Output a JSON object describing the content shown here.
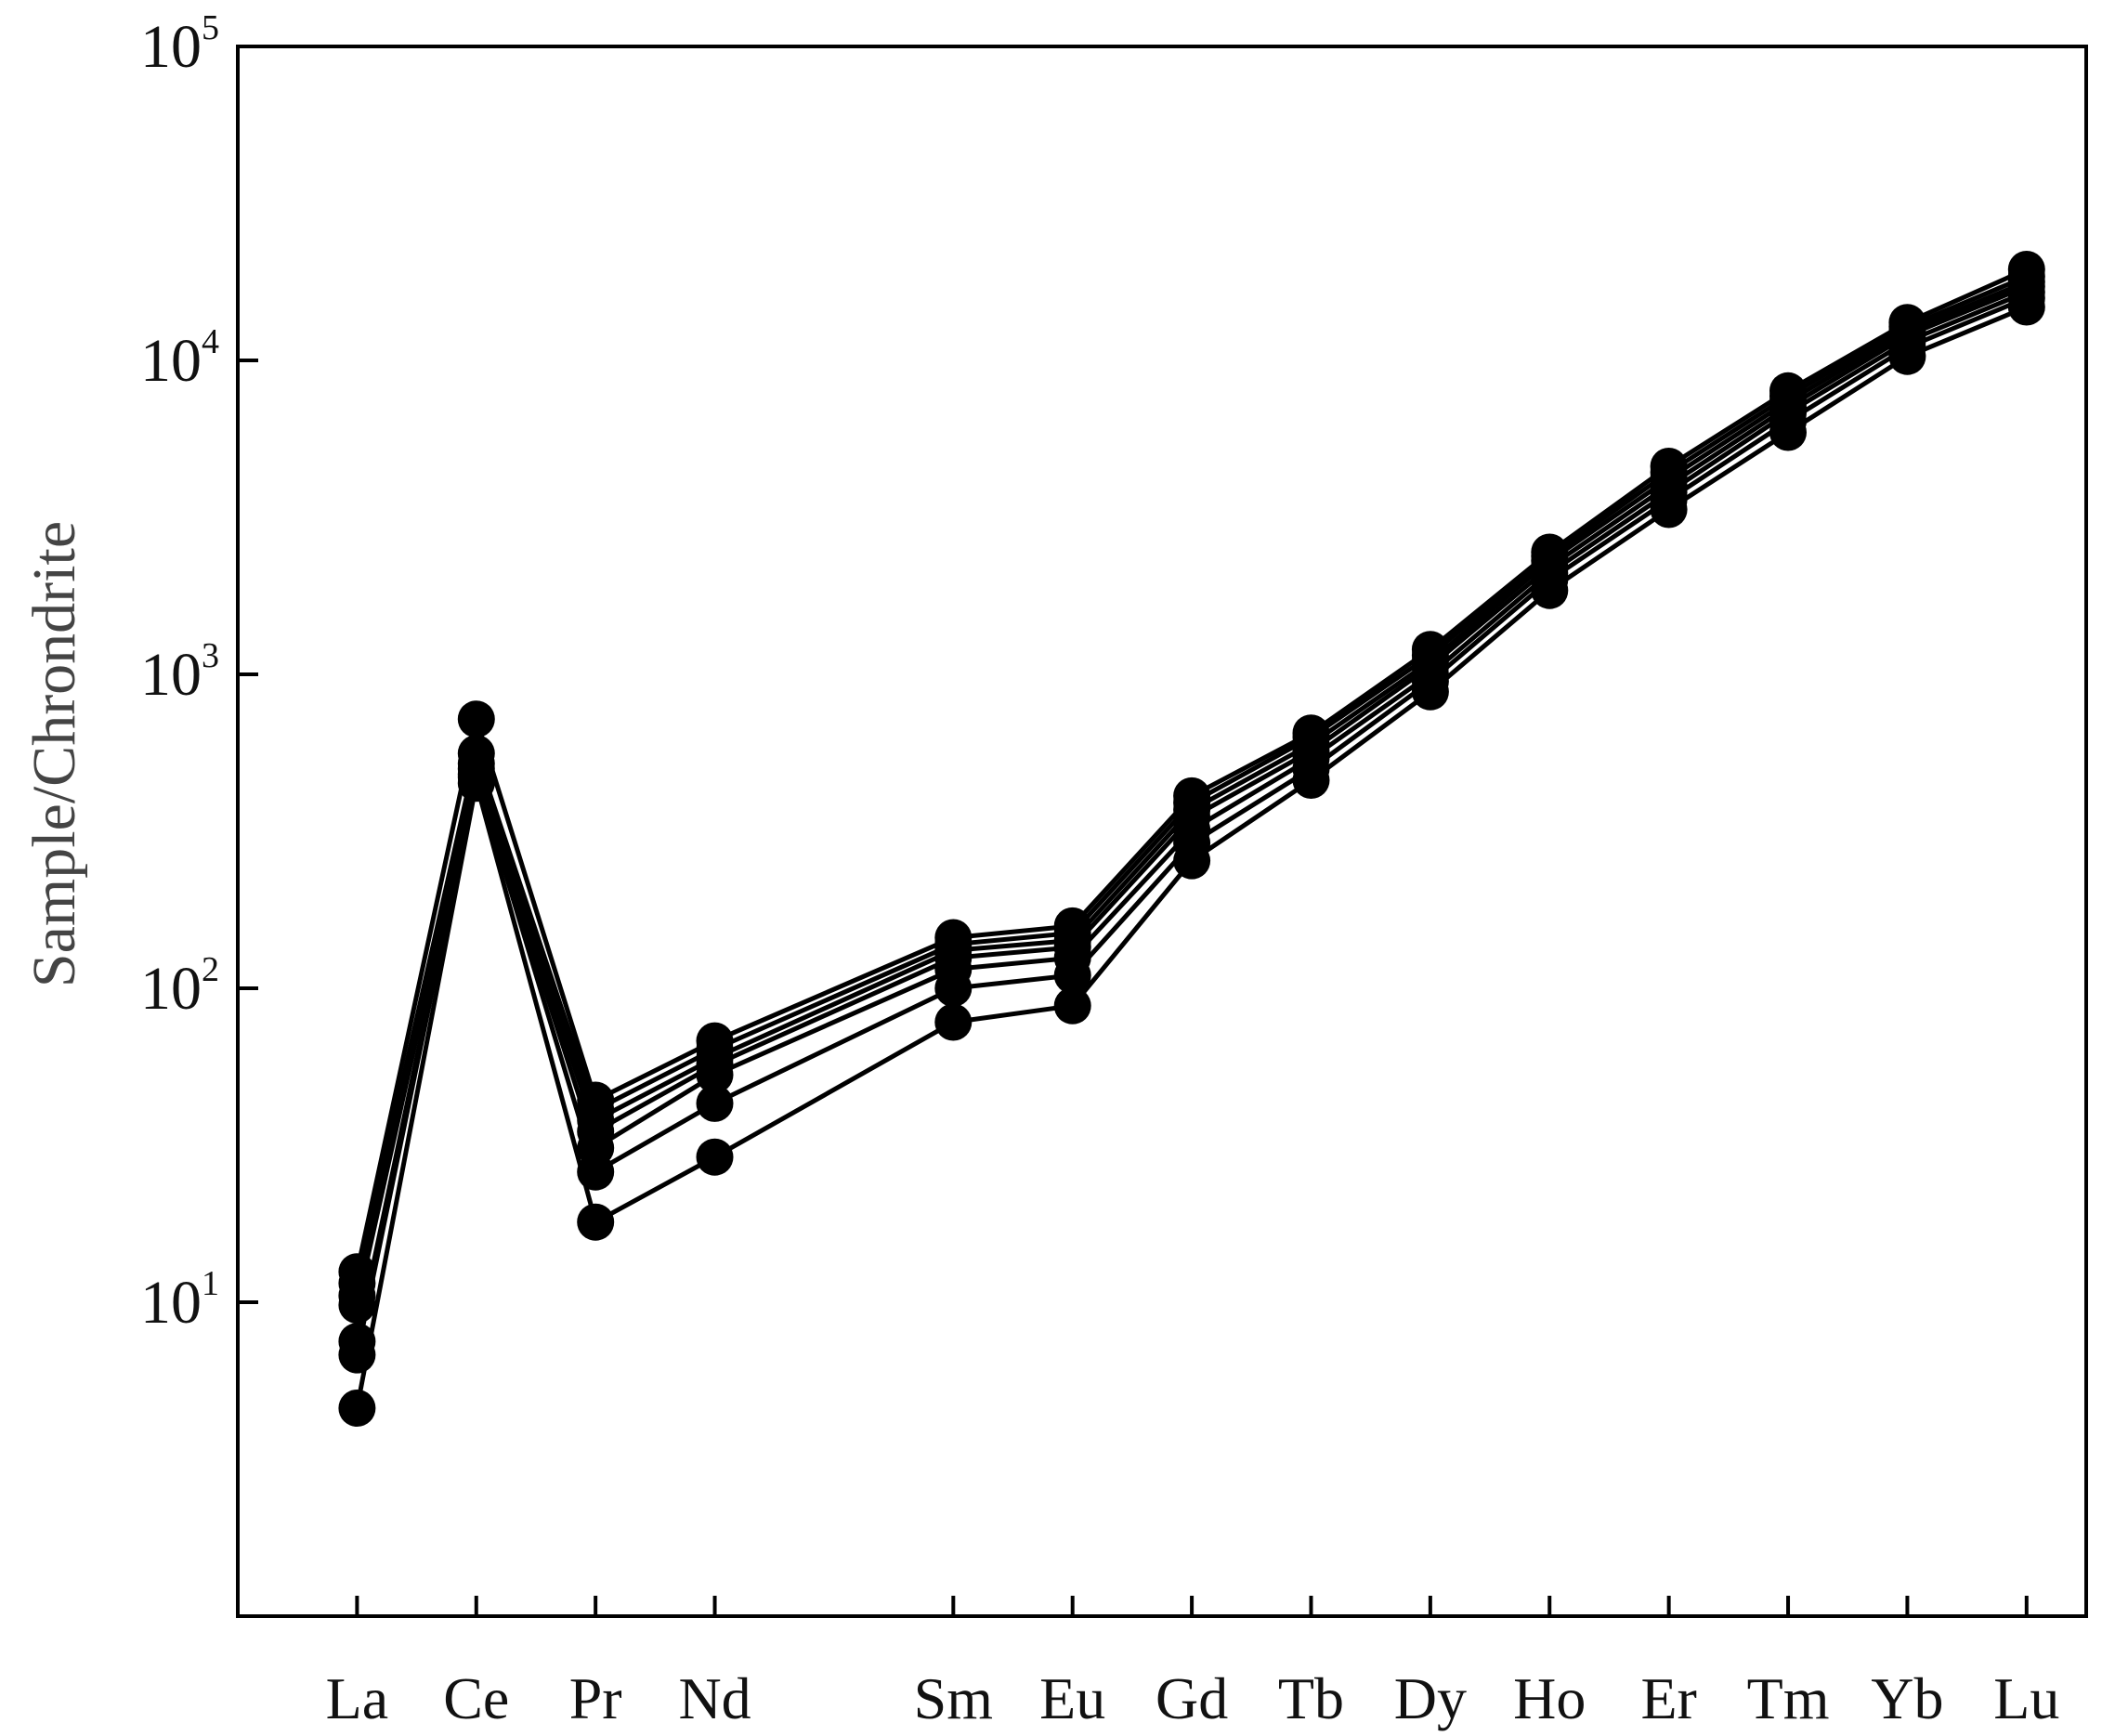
{
  "chart_data": {
    "type": "line",
    "title": "",
    "xlabel": "",
    "ylabel": "Sample/Chrondrite",
    "y_scale": "log",
    "ylim": [
      1,
      100000
    ],
    "y_ticks": [
      {
        "value": 10,
        "base": "10",
        "exp": "1"
      },
      {
        "value": 100,
        "base": "10",
        "exp": "2"
      },
      {
        "value": 1000,
        "base": "10",
        "exp": "3"
      },
      {
        "value": 10000,
        "base": "10",
        "exp": "4"
      },
      {
        "value": 100000,
        "base": "10",
        "exp": "5"
      }
    ],
    "categories": [
      "La",
      "Ce",
      "Pr",
      "Nd",
      "Sm",
      "Eu",
      "Gd",
      "Tb",
      "Dy",
      "Ho",
      "Er",
      "Tm",
      "Yb",
      "Lu"
    ],
    "category_positions": [
      0,
      1,
      2,
      3,
      5,
      6,
      7,
      8,
      9,
      10,
      11,
      12,
      13,
      14
    ],
    "x_range": [
      -1,
      14.5
    ],
    "grid": false,
    "legend": "none",
    "colors": {
      "line": "#000000",
      "marker": "#000000",
      "axis": "#000000"
    },
    "series": [
      {
        "values": [
          12.5,
          720,
          44,
          68,
          145,
          158,
          410,
          650,
          1200,
          2450,
          4600,
          8000,
          13200,
          19500
        ]
      },
      {
        "values": [
          11.5,
          560,
          41,
          64,
          138,
          150,
          390,
          630,
          1150,
          2380,
          4400,
          7700,
          12800,
          18500
        ]
      },
      {
        "values": [
          10.5,
          520,
          38,
          60,
          132,
          142,
          370,
          600,
          1100,
          2300,
          4200,
          7400,
          12400,
          17800
        ]
      },
      {
        "values": [
          9.8,
          500,
          35,
          57,
          125,
          135,
          350,
          570,
          1060,
          2200,
          4000,
          7100,
          12000,
          17200
        ]
      },
      {
        "values": [
          7.5,
          480,
          31,
          53,
          115,
          125,
          320,
          540,
          1000,
          2100,
          3800,
          6800,
          11500,
          16500
        ]
      },
      {
        "values": [
          6.8,
          470,
          26,
          43,
          100,
          110,
          290,
          500,
          950,
          2000,
          3600,
          6400,
          11000,
          15800
        ]
      },
      {
        "values": [
          4.6,
          450,
          18,
          29,
          78,
          88,
          255,
          460,
          880,
          1850,
          3350,
          5900,
          10300,
          14800
        ]
      }
    ]
  }
}
